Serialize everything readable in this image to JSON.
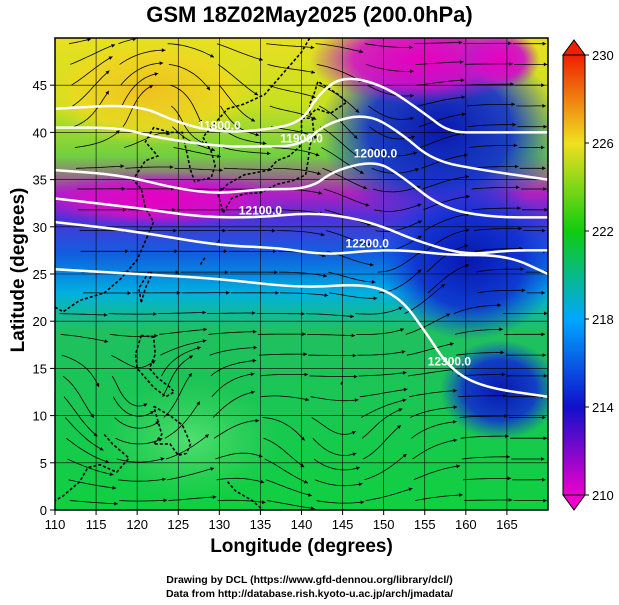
{
  "title": "GSM 18Z02May2025 (200.0hPa)",
  "xlabel": "Longitude (degrees)",
  "ylabel": "Latitude  (degrees)",
  "credits": {
    "line1": "Drawing by DCL (https://www.gfd-dennou.org/library/dcl/)",
    "line2": "Data from http://database.rish.kyoto-u.ac.jp/arch/jmadata/"
  },
  "colors": {
    "min": "#ee00cc",
    "low": "#1010cc",
    "mid": "#00a8ff",
    "high": "#10cc10",
    "upper": "#f0e020",
    "max": "#ee2000",
    "contour": "#ffffff",
    "streamline": "#000000"
  },
  "chart_data": {
    "type": "heatmap",
    "title": "GSM 18Z02May2025 (200.0hPa)",
    "xlabel": "Longitude (degrees)",
    "ylabel": "Latitude  (degrees)",
    "xlim": [
      110,
      170
    ],
    "ylim": [
      0,
      50
    ],
    "x_ticks": [
      110,
      115,
      120,
      125,
      130,
      135,
      140,
      145,
      150,
      155,
      160,
      165
    ],
    "y_ticks": [
      0,
      5,
      10,
      15,
      20,
      25,
      30,
      35,
      40,
      45
    ],
    "grid": true,
    "colorbar": {
      "ticks": [
        210,
        214,
        218,
        222,
        226,
        230
      ],
      "range": [
        210,
        230
      ],
      "colors": [
        "#ee00cc",
        "#1010cc",
        "#00a8ff",
        "#10cc10",
        "#f0e020",
        "#ee2000"
      ]
    },
    "contours": [
      {
        "label": "11800.0",
        "points": [
          [
            110,
            42.5
          ],
          [
            120,
            43
          ],
          [
            125,
            41
          ],
          [
            130,
            40
          ],
          [
            135,
            40.2
          ],
          [
            140,
            41
          ],
          [
            142,
            44
          ],
          [
            145,
            46
          ],
          [
            150,
            45
          ],
          [
            155,
            42
          ],
          [
            158,
            40
          ],
          [
            162,
            40
          ],
          [
            170,
            40
          ]
        ]
      },
      {
        "label": "11900.0",
        "points": [
          [
            110,
            40.5
          ],
          [
            118,
            40.5
          ],
          [
            122,
            39.5
          ],
          [
            130,
            38.5
          ],
          [
            135,
            38.5
          ],
          [
            140,
            38.6
          ],
          [
            143,
            41
          ],
          [
            148,
            42
          ],
          [
            152,
            40
          ],
          [
            156,
            37
          ],
          [
            162,
            36
          ],
          [
            170,
            35
          ]
        ]
      },
      {
        "label": "12000.0",
        "points": [
          [
            110,
            36
          ],
          [
            118,
            35.5
          ],
          [
            125,
            34
          ],
          [
            130,
            33.5
          ],
          [
            135,
            34
          ],
          [
            141,
            34
          ],
          [
            144,
            36
          ],
          [
            149,
            37
          ],
          [
            152,
            35.5
          ],
          [
            157,
            32
          ],
          [
            163,
            31
          ],
          [
            170,
            31
          ]
        ]
      },
      {
        "label": "12100.0",
        "points": [
          [
            110,
            33
          ],
          [
            120,
            32
          ],
          [
            128,
            31
          ],
          [
            135,
            31
          ],
          [
            141,
            31.5
          ],
          [
            146,
            31
          ],
          [
            150,
            30
          ],
          [
            154,
            28.5
          ],
          [
            160,
            27
          ],
          [
            165,
            27.5
          ],
          [
            170,
            27.5
          ]
        ]
      },
      {
        "label": "12200.0",
        "points": [
          [
            110,
            30.5
          ],
          [
            120,
            29.5
          ],
          [
            130,
            28
          ],
          [
            137,
            27.8
          ],
          [
            143,
            27
          ],
          [
            148,
            27.5
          ],
          [
            153,
            27.5
          ],
          [
            158,
            27
          ],
          [
            165,
            27
          ],
          [
            170,
            25
          ]
        ]
      },
      {
        "label": "12300.0",
        "points": [
          [
            110,
            25.5
          ],
          [
            120,
            25
          ],
          [
            130,
            24.5
          ],
          [
            140,
            23.5
          ],
          [
            148,
            24
          ],
          [
            152,
            22.5
          ],
          [
            155,
            19
          ],
          [
            158,
            15
          ],
          [
            162,
            13
          ],
          [
            170,
            12
          ]
        ]
      }
    ],
    "wind_flow": "westerly jet streamlines"
  }
}
